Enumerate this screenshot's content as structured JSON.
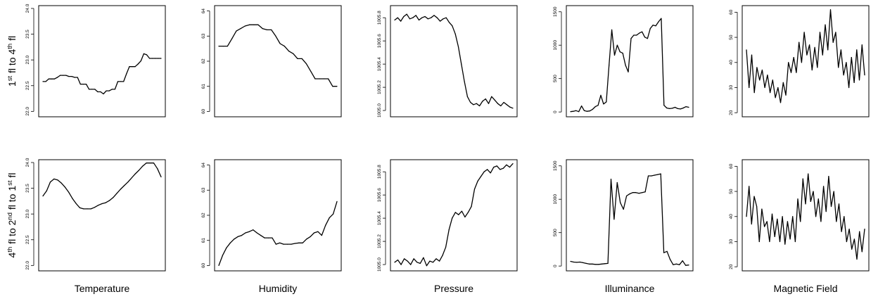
{
  "columns": [
    "Temperature",
    "Humidity",
    "Pressure",
    "Illuminance",
    "Magnetic Field"
  ],
  "rows": [
    {
      "pre": "1",
      "sup1": "st",
      "mid": " fl to 4",
      "sup2": "th",
      "post": " fl"
    },
    {
      "pre": "4",
      "sup1": "th",
      "mid": " fl to 2",
      "sup2": "nd",
      "post": " fl to 1",
      "sup3": "st",
      "post2": " fl"
    }
  ],
  "colors": {
    "line": "#000000",
    "background": "#ffffff"
  },
  "chart_data": [
    {
      "type": "line",
      "row": 0,
      "xlabel": "Temperature",
      "ylim": [
        21.95,
        24.0
      ],
      "yticks": [
        "22.0",
        "22.5",
        "23.0",
        "23.5",
        "24.0"
      ],
      "series": [
        {
          "values": [
            22.58,
            22.58,
            22.63,
            22.63,
            22.63,
            22.66,
            22.7,
            22.7,
            22.7,
            22.68,
            22.68,
            22.66,
            22.66,
            22.53,
            22.53,
            22.53,
            22.43,
            22.43,
            22.43,
            22.38,
            22.38,
            22.34,
            22.4,
            22.4,
            22.43,
            22.43,
            22.58,
            22.58,
            22.58,
            22.73,
            22.87,
            22.87,
            22.87,
            22.92,
            22.98,
            23.12,
            23.1,
            23.03,
            23.03,
            23.03,
            23.03,
            23.03
          ]
        }
      ]
    },
    {
      "type": "line",
      "row": 0,
      "xlabel": "Humidity",
      "ylim": [
        59.9,
        64.1
      ],
      "yticks": [
        "60",
        "61",
        "62",
        "63",
        "64"
      ],
      "series": [
        {
          "values": [
            62.6,
            62.6,
            62.6,
            62.9,
            63.2,
            63.3,
            63.4,
            63.45,
            63.45,
            63.45,
            63.3,
            63.25,
            63.25,
            63.0,
            62.7,
            62.6,
            62.4,
            62.3,
            62.1,
            62.1,
            61.9,
            61.6,
            61.3,
            61.3,
            61.3,
            61.3,
            61.0,
            61.0
          ]
        }
      ]
    },
    {
      "type": "line",
      "row": 0,
      "xlabel": "Pressure",
      "ylim": [
        1004.97,
        1005.88
      ],
      "yticks": [
        "1005.0",
        "1005.2",
        "1005.4",
        "1005.6",
        "1005.8"
      ],
      "series": [
        {
          "values": [
            1005.78,
            1005.8,
            1005.77,
            1005.81,
            1005.83,
            1005.79,
            1005.8,
            1005.82,
            1005.78,
            1005.8,
            1005.81,
            1005.79,
            1005.8,
            1005.82,
            1005.8,
            1005.77,
            1005.79,
            1005.8,
            1005.76,
            1005.73,
            1005.66,
            1005.55,
            1005.4,
            1005.25,
            1005.12,
            1005.07,
            1005.05,
            1005.06,
            1005.04,
            1005.08,
            1005.1,
            1005.06,
            1005.12,
            1005.09,
            1005.06,
            1005.04,
            1005.07,
            1005.05,
            1005.03,
            1005.02
          ]
        }
      ]
    },
    {
      "type": "line",
      "row": 0,
      "xlabel": "Illuminance",
      "ylim": [
        -30,
        1550
      ],
      "yticks": [
        "0",
        "500",
        "1000",
        "1500"
      ],
      "series": [
        {
          "values": [
            5,
            10,
            20,
            5,
            90,
            20,
            10,
            15,
            40,
            80,
            100,
            250,
            120,
            150,
            700,
            1230,
            850,
            1000,
            900,
            880,
            700,
            600,
            1100,
            1150,
            1150,
            1180,
            1200,
            1120,
            1100,
            1250,
            1300,
            1290,
            1350,
            1400,
            100,
            60,
            50,
            55,
            70,
            50,
            45,
            60,
            80,
            70
          ]
        }
      ]
    },
    {
      "type": "line",
      "row": 0,
      "xlabel": "Magnetic Field",
      "ylim": [
        19.5,
        61.5
      ],
      "yticks": [
        "20",
        "30",
        "40",
        "50",
        "60"
      ],
      "series": [
        {
          "values": [
            45,
            30,
            43,
            28,
            38,
            33,
            37,
            30,
            35,
            28,
            33,
            26,
            30,
            24,
            32,
            27,
            40,
            36,
            42,
            36,
            48,
            40,
            52,
            43,
            47,
            37,
            46,
            38,
            52,
            43,
            55,
            45,
            61,
            48,
            52,
            38,
            45,
            35,
            40,
            30,
            42,
            32,
            45,
            33,
            47,
            35
          ]
        }
      ]
    },
    {
      "type": "line",
      "row": 1,
      "xlabel": "Temperature",
      "ylim": [
        21.95,
        24.0
      ],
      "yticks": [
        "22.0",
        "22.5",
        "23.0",
        "23.5",
        "24.0"
      ],
      "series": [
        {
          "values": [
            23.35,
            23.45,
            23.62,
            23.68,
            23.66,
            23.6,
            23.52,
            23.42,
            23.3,
            23.2,
            23.12,
            23.1,
            23.1,
            23.1,
            23.13,
            23.17,
            23.2,
            23.22,
            23.26,
            23.32,
            23.4,
            23.48,
            23.55,
            23.62,
            23.7,
            23.78,
            23.85,
            23.93,
            23.99,
            23.99,
            23.99,
            23.88,
            23.72
          ]
        }
      ]
    },
    {
      "type": "line",
      "row": 1,
      "xlabel": "Humidity",
      "ylim": [
        59.9,
        64.1
      ],
      "yticks": [
        "60",
        "61",
        "62",
        "63",
        "64"
      ],
      "series": [
        {
          "values": [
            60.0,
            60.4,
            60.7,
            60.9,
            61.05,
            61.15,
            61.2,
            61.3,
            61.35,
            61.42,
            61.3,
            61.2,
            61.1,
            61.1,
            61.1,
            60.85,
            60.9,
            60.85,
            60.85,
            60.85,
            60.88,
            60.9,
            60.9,
            61.05,
            61.15,
            61.3,
            61.35,
            61.2,
            61.6,
            61.9,
            62.05,
            62.55
          ]
        }
      ]
    },
    {
      "type": "line",
      "row": 1,
      "xlabel": "Pressure",
      "ylim": [
        1004.97,
        1005.88
      ],
      "yticks": [
        "1005.0",
        "1005.2",
        "1005.4",
        "1005.6",
        "1005.8"
      ],
      "series": [
        {
          "values": [
            1005.02,
            1005.04,
            1005.0,
            1005.05,
            1005.03,
            1005.0,
            1005.05,
            1005.02,
            1005.01,
            1005.06,
            1004.99,
            1005.03,
            1005.02,
            1005.05,
            1005.03,
            1005.08,
            1005.15,
            1005.3,
            1005.4,
            1005.45,
            1005.43,
            1005.46,
            1005.41,
            1005.45,
            1005.5,
            1005.65,
            1005.72,
            1005.76,
            1005.8,
            1005.82,
            1005.79,
            1005.84,
            1005.85,
            1005.82,
            1005.83,
            1005.86,
            1005.84,
            1005.87
          ]
        }
      ]
    },
    {
      "type": "line",
      "row": 1,
      "xlabel": "Illuminance",
      "ylim": [
        -30,
        1550
      ],
      "yticks": [
        "0",
        "500",
        "1000",
        "1500"
      ],
      "series": [
        {
          "values": [
            70,
            60,
            55,
            60,
            50,
            40,
            30,
            30,
            25,
            25,
            30,
            35,
            40,
            1300,
            700,
            1250,
            950,
            850,
            1050,
            1080,
            1100,
            1100,
            1090,
            1100,
            1110,
            1350,
            1350,
            1360,
            1370,
            1380,
            200,
            220,
            100,
            20,
            30,
            20,
            80,
            10,
            15
          ]
        }
      ]
    },
    {
      "type": "line",
      "row": 1,
      "xlabel": "Magnetic Field",
      "ylim": [
        19.5,
        61.5
      ],
      "yticks": [
        "20",
        "30",
        "40",
        "50",
        "60"
      ],
      "series": [
        {
          "values": [
            40,
            52,
            37,
            48,
            44,
            30,
            43,
            36,
            38,
            30,
            41,
            32,
            39,
            30,
            40,
            29,
            38,
            31,
            40,
            30,
            47,
            38,
            55,
            45,
            57,
            46,
            50,
            40,
            47,
            38,
            52,
            42,
            56,
            44,
            50,
            38,
            45,
            34,
            40,
            30,
            35,
            27,
            31,
            23,
            34,
            26,
            35
          ]
        }
      ]
    }
  ]
}
